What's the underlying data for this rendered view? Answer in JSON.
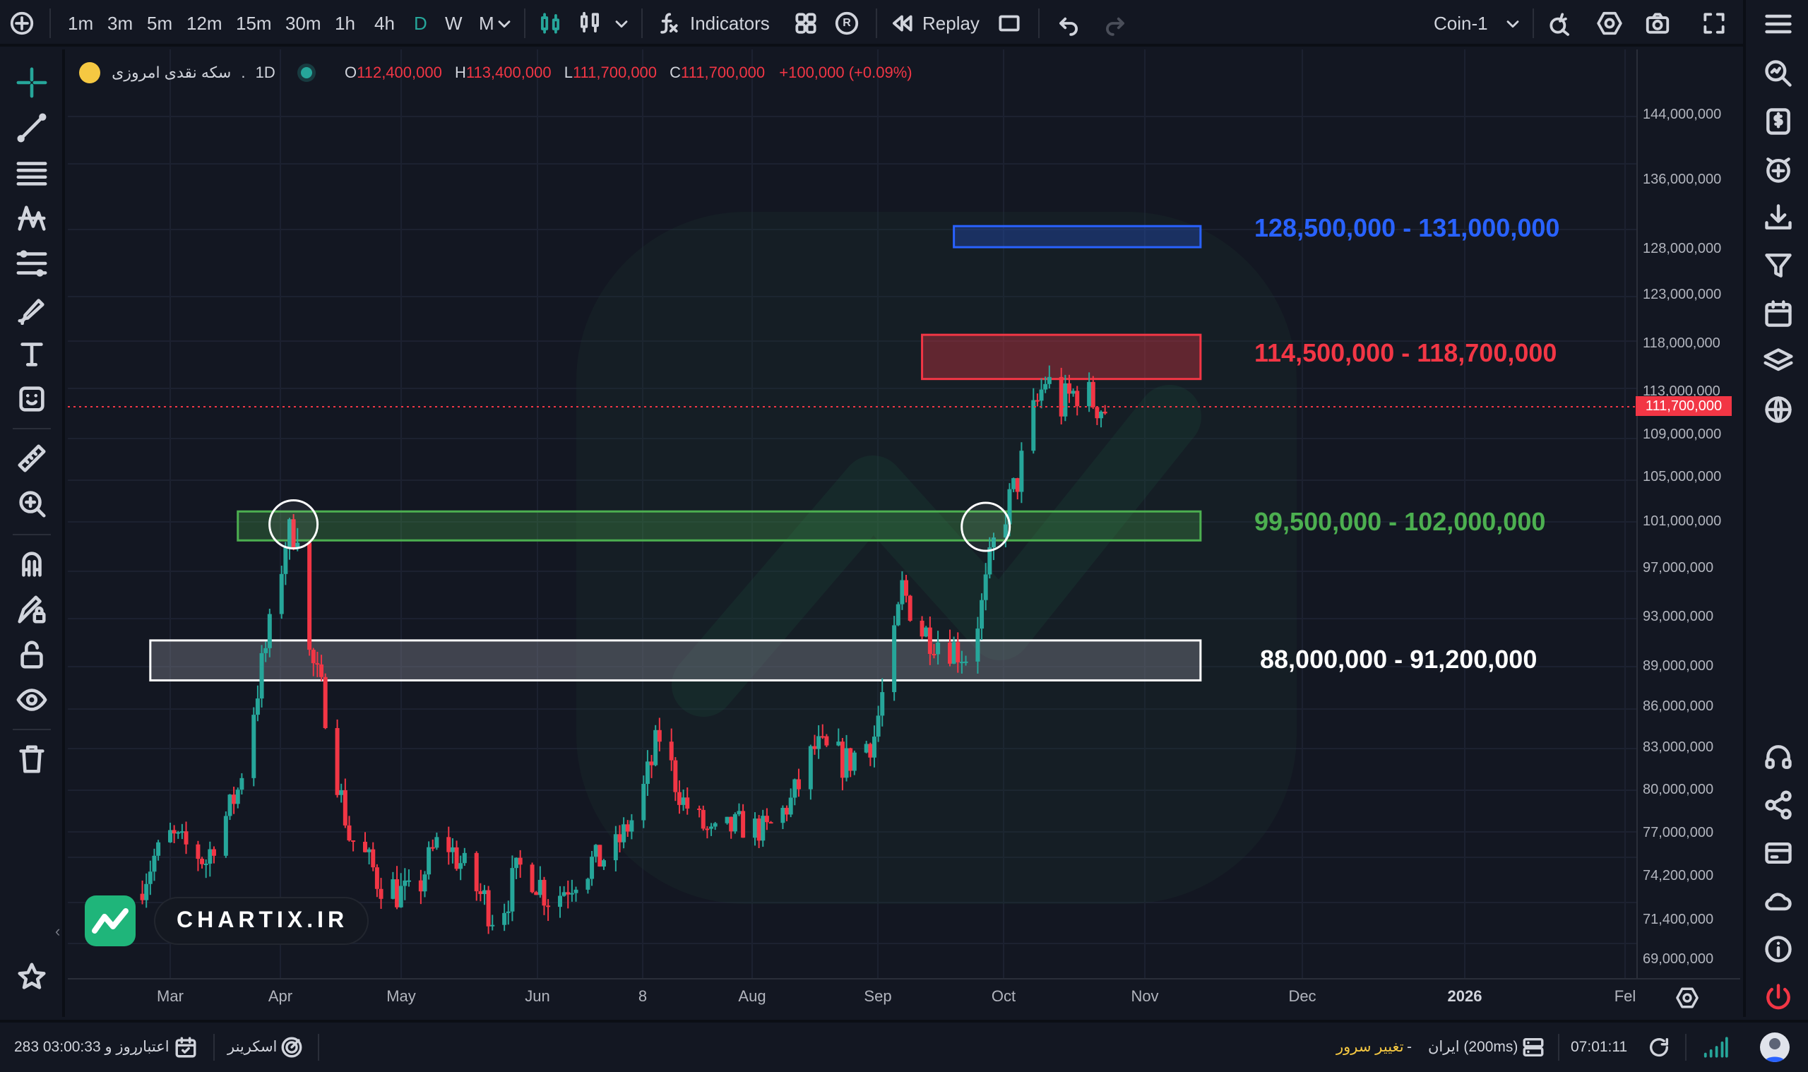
{
  "toolbar": {
    "timeframes": [
      "1m",
      "3m",
      "5m",
      "12m",
      "15m",
      "30m",
      "1h",
      "4h",
      "D",
      "W",
      "M"
    ],
    "active_timeframe": "D",
    "indicators_label": "Indicators",
    "replay_label": "Replay",
    "layout_name": "Coin-1",
    "r_badge": "R"
  },
  "legend": {
    "symbol": "سکه نقدی امروزی",
    "interval": "1D",
    "open_label": "O",
    "open": "112,400,000",
    "high_label": "H",
    "high": "113,400,000",
    "low_label": "L",
    "low": "111,700,000",
    "close_label": "C",
    "close": "111,700,000",
    "change": "+100,000 (+0.09%)"
  },
  "zones": [
    {
      "label": "128,500,000 - 131,000,000",
      "color": "#2962ff"
    },
    {
      "label": "114,500,000 - 118,700,000",
      "color": "#f23645"
    },
    {
      "label": "99,500,000 - 102,000,000",
      "color": "#4caf50"
    },
    {
      "label": "88,000,000 - 91,200,000",
      "color": "#ffffff"
    }
  ],
  "price_axis": {
    "labels": [
      "144,000,000",
      "136,000,000",
      "128,000,000",
      "123,000,000",
      "118,000,000",
      "113,000,000",
      "109,000,000",
      "105,000,000",
      "101,000,000",
      "97,000,000",
      "93,000,000",
      "89,000,000",
      "86,000,000",
      "83,000,000",
      "80,000,000",
      "77,000,000",
      "74,200,000",
      "71,400,000",
      "69,000,000"
    ],
    "current_price": "111,700,000"
  },
  "time_axis": {
    "labels": [
      "Mar",
      "Apr",
      "May",
      "Jun",
      "8",
      "Aug",
      "Sep",
      "Oct",
      "Nov",
      "Dec",
      "2026",
      "Fel"
    ]
  },
  "watermark": {
    "brand": "CHARTIX.IR"
  },
  "statusbar": {
    "subscription_label": "اعتبار",
    "subscription_value": "283 روز و 03:00:33",
    "screener_label": "اسکرینر",
    "change_server_label": "تغییر سرور",
    "server_label": "ایران (200ms)",
    "server_separator": "-",
    "clock": "07:01:11"
  },
  "chart_data": {
    "type": "candlestick",
    "series_name": "سکه نقدی امروزی",
    "interval": "1D",
    "ylim": [
      68000000,
      152000000
    ],
    "last": {
      "open": 112400000,
      "high": 113400000,
      "low": 111700000,
      "close": 111700000
    },
    "price_path": [
      [
        "2025-02-20",
        72000000
      ],
      [
        "2025-03-01",
        76000000
      ],
      [
        "2025-03-10",
        74000000
      ],
      [
        "2025-03-18",
        80000000
      ],
      [
        "2025-03-26",
        92000000
      ],
      [
        "2025-03-30",
        99500000
      ],
      [
        "2025-04-02",
        100800000
      ],
      [
        "2025-04-05",
        90000000
      ],
      [
        "2025-04-09",
        86000000
      ],
      [
        "2025-04-15",
        76000000
      ],
      [
        "2025-04-22",
        73000000
      ],
      [
        "2025-05-01",
        71500000
      ],
      [
        "2025-05-08",
        76000000
      ],
      [
        "2025-05-15",
        73000000
      ],
      [
        "2025-05-22",
        70500000
      ],
      [
        "2025-05-29",
        74000000
      ],
      [
        "2025-06-05",
        71500000
      ],
      [
        "2025-06-12",
        73500000
      ],
      [
        "2025-06-20",
        74500000
      ],
      [
        "2025-06-26",
        78000000
      ],
      [
        "2025-07-02",
        84000000
      ],
      [
        "2025-07-08",
        79000000
      ],
      [
        "2025-07-15",
        76000000
      ],
      [
        "2025-07-22",
        77000000
      ],
      [
        "2025-07-29",
        76500000
      ],
      [
        "2025-08-04",
        79000000
      ],
      [
        "2025-08-10",
        83000000
      ],
      [
        "2025-08-18",
        82000000
      ],
      [
        "2025-08-25",
        84000000
      ],
      [
        "2025-08-30",
        91000000
      ],
      [
        "2025-09-01",
        95500000
      ],
      [
        "2025-09-06",
        92000000
      ],
      [
        "2025-09-12",
        91000000
      ],
      [
        "2025-09-17",
        90000000
      ],
      [
        "2025-09-21",
        94000000
      ],
      [
        "2025-09-24",
        99000000
      ],
      [
        "2025-09-26",
        101000000
      ],
      [
        "2025-09-30",
        105000000
      ],
      [
        "2025-10-03",
        110000000
      ],
      [
        "2025-10-07",
        114500000
      ],
      [
        "2025-10-11",
        112000000
      ],
      [
        "2025-10-15",
        113500000
      ],
      [
        "2025-10-19",
        112500000
      ],
      [
        "2025-10-22",
        111700000
      ]
    ],
    "zones": [
      {
        "from": 128500000,
        "to": 131000000,
        "start": "2025-09-14",
        "end": "2025-11-15"
      },
      {
        "from": 114500000,
        "to": 118700000,
        "start": "2025-09-06",
        "end": "2025-11-15"
      },
      {
        "from": 99500000,
        "to": 102000000,
        "start": "2025-03-18",
        "end": "2025-11-15"
      },
      {
        "from": 88000000,
        "to": 91200000,
        "start": "2025-02-24",
        "end": "2025-11-15"
      }
    ],
    "markers": [
      {
        "date": "2025-04-01",
        "price": 100800000
      },
      {
        "date": "2025-09-22",
        "price": 100600000
      }
    ]
  }
}
